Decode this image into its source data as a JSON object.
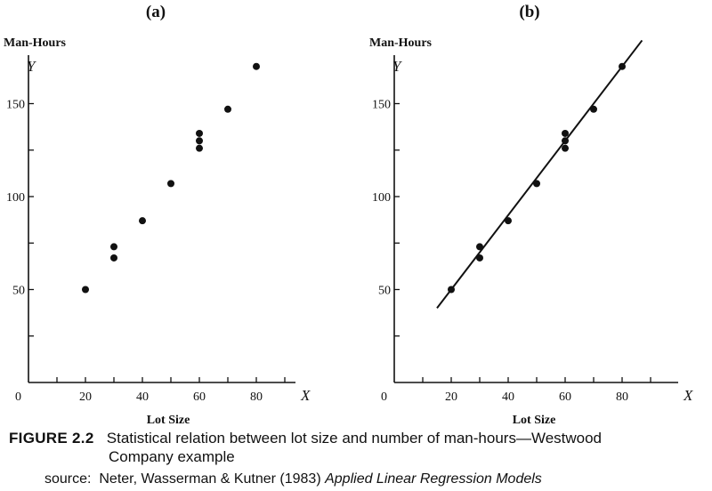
{
  "chart_data": [
    {
      "type": "scatter",
      "panel_label": "(a)",
      "ylabel": "Man-Hours",
      "y_axis_letter": "Y",
      "xlabel": "Lot Size",
      "x_axis_letter": "X",
      "xlim": [
        0,
        90
      ],
      "ylim": [
        0,
        180
      ],
      "x_tick_labels": [
        "20",
        "40",
        "60",
        "80"
      ],
      "x_tick_values": [
        20,
        40,
        60,
        80
      ],
      "x_minor_ticks": [
        10,
        20,
        30,
        40,
        50,
        60,
        70,
        80,
        90
      ],
      "y_tick_labels": [
        "50",
        "100",
        "150"
      ],
      "y_tick_values": [
        50,
        100,
        150
      ],
      "y_minor_ticks": [
        25,
        50,
        75,
        100,
        125,
        150
      ],
      "origin_label": "0",
      "points": [
        {
          "x": 20,
          "y": 50
        },
        {
          "x": 30,
          "y": 73
        },
        {
          "x": 30,
          "y": 67
        },
        {
          "x": 40,
          "y": 87
        },
        {
          "x": 50,
          "y": 107
        },
        {
          "x": 60,
          "y": 134
        },
        {
          "x": 60,
          "y": 130
        },
        {
          "x": 60,
          "y": 126
        },
        {
          "x": 70,
          "y": 147
        },
        {
          "x": 80,
          "y": 170
        }
      ]
    },
    {
      "type": "scatter",
      "panel_label": "(b)",
      "ylabel": "Man-Hours",
      "y_axis_letter": "Y",
      "xlabel": "Lot Size",
      "x_axis_letter": "X",
      "xlim": [
        0,
        90
      ],
      "ylim": [
        0,
        180
      ],
      "x_tick_labels": [
        "20",
        "40",
        "60",
        "80"
      ],
      "x_tick_values": [
        20,
        40,
        60,
        80
      ],
      "x_minor_ticks": [
        10,
        20,
        30,
        40,
        50,
        60,
        70,
        80,
        90
      ],
      "y_tick_labels": [
        "50",
        "100",
        "150"
      ],
      "y_tick_values": [
        50,
        100,
        150
      ],
      "y_minor_ticks": [
        25,
        50,
        75,
        100,
        125,
        150
      ],
      "origin_label": "0",
      "points": [
        {
          "x": 20,
          "y": 50
        },
        {
          "x": 30,
          "y": 73
        },
        {
          "x": 30,
          "y": 67
        },
        {
          "x": 40,
          "y": 87
        },
        {
          "x": 50,
          "y": 107
        },
        {
          "x": 60,
          "y": 134
        },
        {
          "x": 60,
          "y": 130
        },
        {
          "x": 60,
          "y": 126
        },
        {
          "x": 70,
          "y": 147
        },
        {
          "x": 80,
          "y": 170
        }
      ],
      "fit_line": {
        "intercept": 10,
        "slope": 2,
        "x_range": [
          15,
          87
        ]
      }
    }
  ],
  "caption": {
    "figure_number": "FIGURE 2.2",
    "line1": "Statistical relation between lot size and number of man-hours—Westwood",
    "line2": "Company example"
  },
  "source": {
    "prefix": "source:",
    "authors": "Neter, Wasserman & Kutner (1983)",
    "book": "Applied Linear Regression Models"
  }
}
